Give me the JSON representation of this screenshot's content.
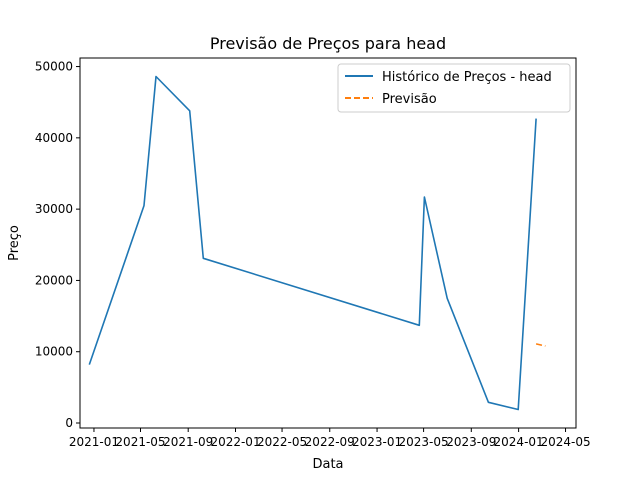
{
  "chart_data": {
    "type": "line",
    "title": "Previsão de Preços para head",
    "xlabel": "Data",
    "ylabel": "Preço",
    "x_ticks": [
      "2021-01",
      "2021-05",
      "2021-09",
      "2022-01",
      "2022-05",
      "2022-09",
      "2023-01",
      "2023-05",
      "2023-09",
      "2024-01",
      "2024-05"
    ],
    "y_ticks": [
      "0",
      "10000",
      "20000",
      "30000",
      "40000",
      "50000"
    ],
    "xlim": [
      "2020-11-26",
      "2024-05-28"
    ],
    "ylim": [
      -700,
      51200
    ],
    "grid": false,
    "legend_position": "top-right",
    "series": [
      {
        "name": "Histórico de Preços - head",
        "color": "#1f77b4",
        "style": "solid",
        "x": [
          "2020-12-20",
          "2021-05-10",
          "2021-06-10",
          "2021-09-05",
          "2021-10-10",
          "2023-04-20",
          "2023-05-03",
          "2023-07-01",
          "2023-10-15",
          "2023-12-31",
          "2024-02-15"
        ],
        "y": [
          8200,
          30500,
          48600,
          43800,
          23100,
          13700,
          31700,
          17500,
          2900,
          1900,
          42700
        ]
      },
      {
        "name": "Previsão",
        "color": "#ff7f0e",
        "style": "dashed",
        "x": [
          "2024-02-15",
          "2024-03-10"
        ],
        "y": [
          11100,
          10800
        ]
      }
    ]
  }
}
